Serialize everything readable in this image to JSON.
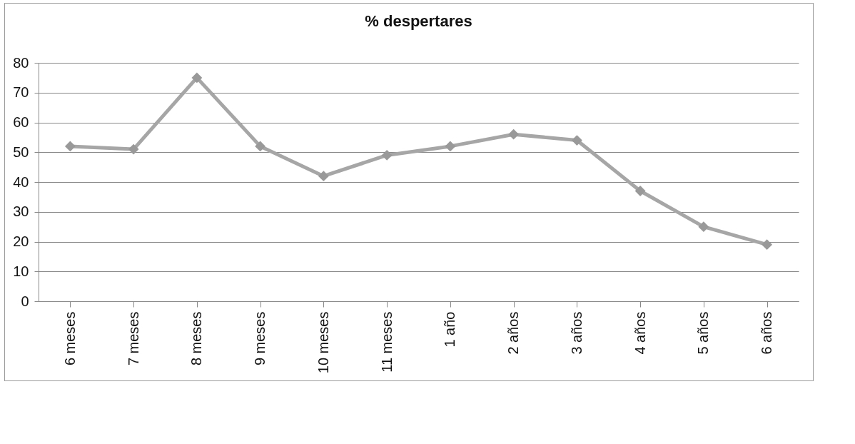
{
  "chart_data": {
    "type": "line",
    "title": "% despertares",
    "categories": [
      "6 meses",
      "7 meses",
      "8 meses",
      "9 meses",
      "10 meses",
      "11 meses",
      "1 año",
      "2 años",
      "3 años",
      "4 años",
      "5 años",
      "6 años"
    ],
    "series": [
      {
        "color": "#a6a6a6",
        "values": [
          52,
          51,
          75,
          52,
          42,
          49,
          52,
          56,
          54,
          37,
          25,
          19
        ]
      }
    ],
    "ylim": [
      0,
      80
    ],
    "yticks": [
      0,
      10,
      20,
      30,
      40,
      50,
      60,
      70,
      80
    ],
    "grid": "y",
    "marker": "diamond",
    "line_style": "solid",
    "legend": false
  }
}
